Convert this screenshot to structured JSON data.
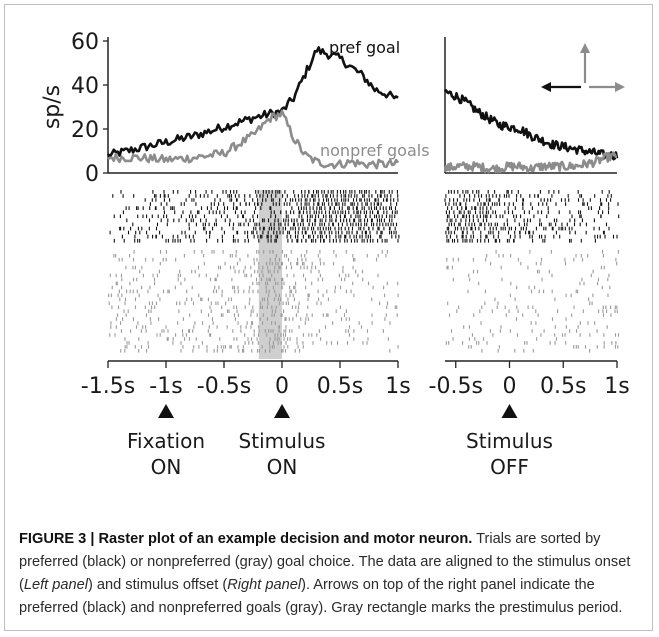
{
  "chart_data": [
    {
      "type": "line",
      "panel": "left",
      "ylabel": "sp/s",
      "ylim": [
        0,
        60
      ],
      "yticks": [
        "0",
        "20",
        "40",
        "60"
      ],
      "xlim": [
        -1.5,
        1.0
      ],
      "x": [
        -1.5,
        -1.25,
        -1.0,
        -0.75,
        -0.5,
        -0.25,
        -0.1,
        0.0,
        0.1,
        0.2,
        0.3,
        0.4,
        0.5,
        0.6,
        0.7,
        0.8,
        0.9,
        1.0
      ],
      "series": [
        {
          "name": "pref goal",
          "color": "#111111",
          "values": [
            8,
            11,
            14,
            17,
            21,
            25,
            27,
            28,
            34,
            45,
            56,
            54,
            52,
            48,
            44,
            38,
            36,
            33
          ]
        },
        {
          "name": "nonpref goals",
          "color": "#8c8c8c",
          "values": [
            7,
            7,
            6,
            7,
            9,
            17,
            25,
            27,
            16,
            8,
            5,
            4,
            4,
            5,
            4,
            4,
            4,
            4
          ]
        }
      ]
    },
    {
      "type": "line",
      "panel": "right",
      "ylim": [
        0,
        60
      ],
      "xlim": [
        -0.6,
        1.0
      ],
      "x": [
        -0.6,
        -0.5,
        -0.4,
        -0.3,
        -0.2,
        -0.1,
        0.0,
        0.1,
        0.2,
        0.3,
        0.4,
        0.5,
        0.6,
        0.7,
        0.8,
        0.9,
        1.0
      ],
      "series": [
        {
          "name": "pref goal",
          "color": "#111111",
          "values": [
            37,
            35,
            32,
            28,
            25,
            22,
            21,
            20,
            17,
            15,
            13,
            12,
            11,
            10,
            9,
            8,
            8
          ]
        },
        {
          "name": "nonpref goals",
          "color": "#8c8c8c",
          "values": [
            2,
            3,
            3,
            3,
            2,
            2,
            3,
            3,
            2,
            3,
            3,
            3,
            3,
            4,
            5,
            7,
            8
          ]
        }
      ]
    }
  ],
  "figure": {
    "left_panel": {
      "xtick_labels": [
        {
          "v": -1.5,
          "t": "-1.5s"
        },
        {
          "v": -1.0,
          "t": "-1s"
        },
        {
          "v": -0.5,
          "t": "-0.5s"
        },
        {
          "v": 0.0,
          "t": "0"
        },
        {
          "v": 0.5,
          "t": "0.5s"
        },
        {
          "v": 1.0,
          "t": "1s"
        }
      ],
      "events": [
        {
          "v": -1.0,
          "line1": "Fixation",
          "line2": "ON"
        },
        {
          "v": 0.0,
          "line1": "Stimulus",
          "line2": "ON"
        }
      ],
      "prestimulus_window": [
        -0.2,
        0.0
      ]
    },
    "right_panel": {
      "xtick_labels": [
        {
          "v": -0.5,
          "t": "-0.5s"
        },
        {
          "v": 0.0,
          "t": "0"
        },
        {
          "v": 0.5,
          "t": "0.5s"
        },
        {
          "v": 1.0,
          "t": "1s"
        }
      ],
      "events": [
        {
          "v": 0.0,
          "line1": "Stimulus",
          "line2": "OFF"
        }
      ]
    },
    "raster": {
      "pref_color": "#111111",
      "nonpref_color": "#9a9a9a",
      "highlight_color": "#cfcfcf"
    },
    "direction_arrows": {
      "preferred": "left",
      "nonpreferred": [
        "up",
        "right"
      ]
    }
  },
  "caption": {
    "title": "FIGURE 3 | Raster plot of an example decision and motor neuron.",
    "body_1": " Trials are sorted by preferred (black) or nonpreferred (gray) goal choice. The data are aligned to the stimulus onset (",
    "left_panel": "Left panel",
    "body_2": ") and stimulus offset (",
    "right_panel": "Right panel",
    "body_3": "). Arrows on top of the right panel indicate the preferred (black) and nonpreferred goals (gray). Gray rectangle marks the prestimulus period."
  }
}
